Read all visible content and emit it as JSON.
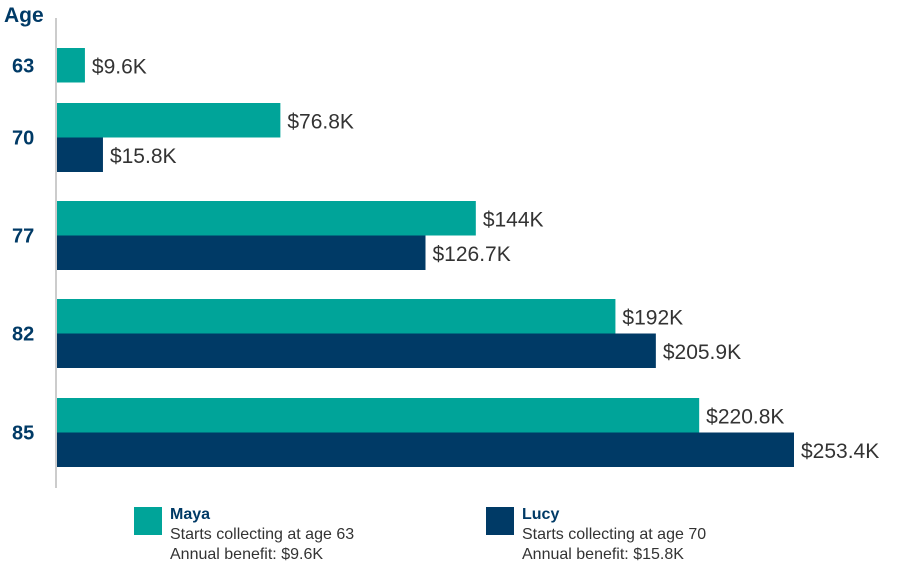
{
  "chart_data": {
    "type": "bar",
    "orientation": "horizontal",
    "ylabel": "Age",
    "categories": [
      "63",
      "70",
      "77",
      "82",
      "85"
    ],
    "series": [
      {
        "name": "Maya",
        "color": "#00a499",
        "values": [
          9.6,
          76.8,
          144,
          192,
          220.8
        ],
        "labels": [
          "$9.6K",
          "$76.8K",
          "$144K",
          "$192K",
          "$220.8K"
        ]
      },
      {
        "name": "Lucy",
        "color": "#003a66",
        "values": [
          null,
          15.8,
          126.7,
          205.9,
          253.4
        ],
        "labels": [
          null,
          "$15.8K",
          "$126.7K",
          "$205.9K",
          "$253.4K"
        ]
      }
    ],
    "unit": "$K",
    "xlim": [
      0,
      253.4
    ],
    "grid": false
  },
  "legend": [
    {
      "name": "Maya",
      "line1": "Starts collecting at age 63",
      "line2": "Annual benefit: $9.6K"
    },
    {
      "name": "Lucy",
      "line1": "Starts collecting at age 70",
      "line2": "Annual benefit: $15.8K"
    }
  ]
}
